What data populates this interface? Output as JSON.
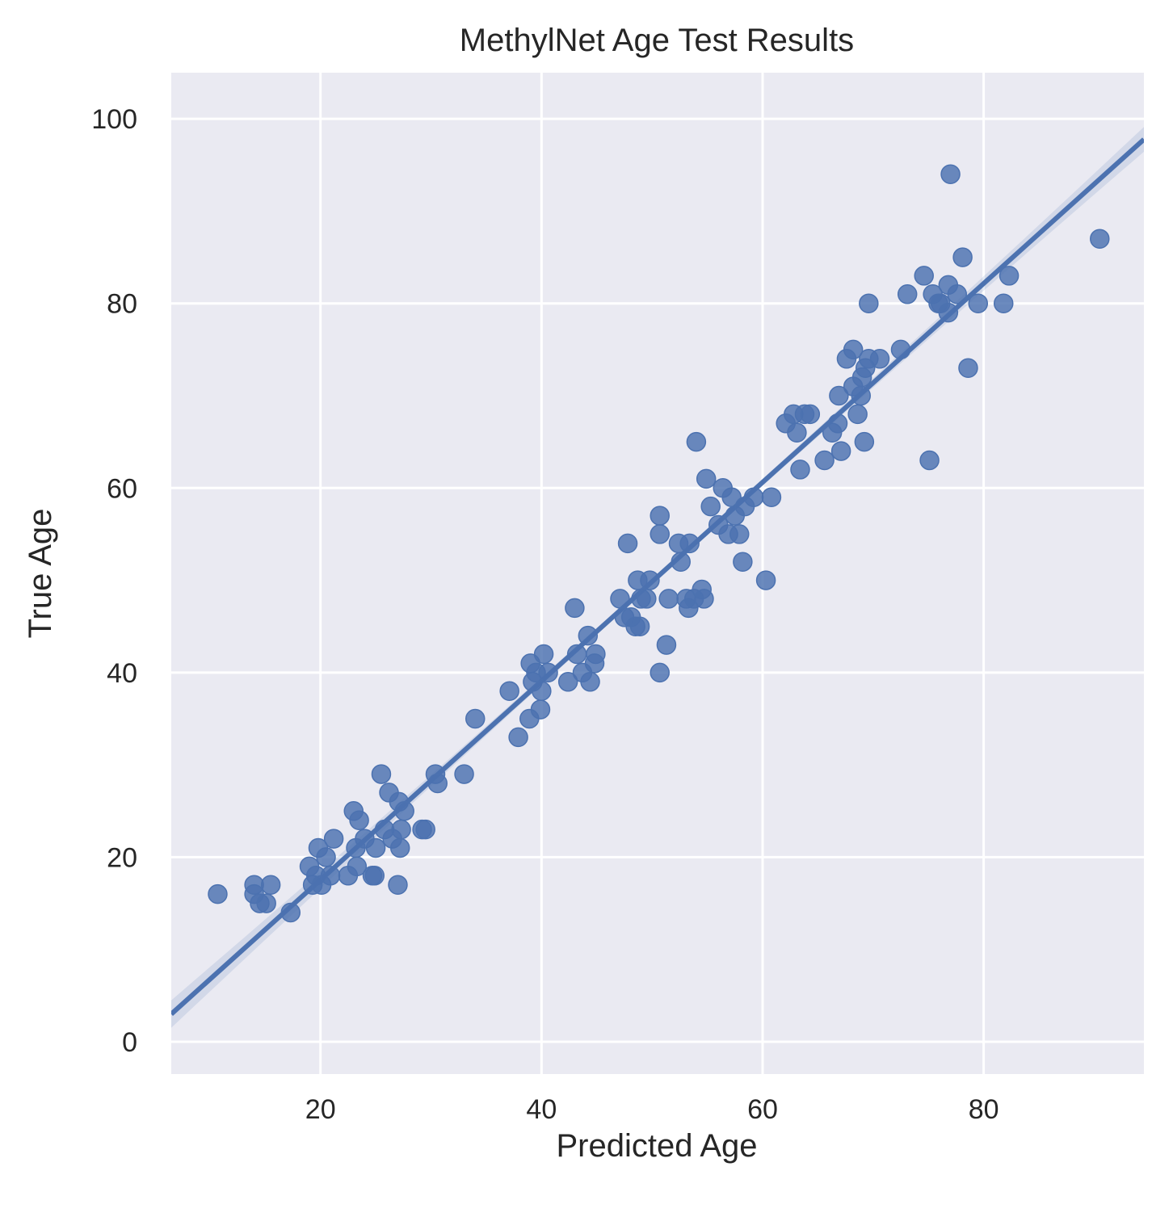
{
  "chart_data": {
    "type": "scatter",
    "title": "MethylNet Age Test Results",
    "xlabel": "Predicted Age",
    "ylabel": "True Age",
    "xlim": [
      6.5,
      94.5
    ],
    "ylim": [
      -3.5,
      105
    ],
    "xticks": [
      20,
      40,
      60,
      80
    ],
    "yticks": [
      0,
      20,
      40,
      60,
      80,
      100
    ],
    "grid": true,
    "background_color": "#eaeaf2",
    "grid_color": "#ffffff",
    "marker_color": "#4c72b0",
    "line_color": "#4c72b0",
    "regression": {
      "slope": 1.077,
      "intercept": -4.0
    },
    "points": [
      [
        10.7,
        16
      ],
      [
        14.0,
        17
      ],
      [
        14.0,
        16
      ],
      [
        14.5,
        15
      ],
      [
        15.1,
        15
      ],
      [
        15.5,
        17
      ],
      [
        17.3,
        14
      ],
      [
        19.0,
        19
      ],
      [
        19.3,
        17
      ],
      [
        19.6,
        18
      ],
      [
        19.8,
        21
      ],
      [
        20.1,
        17
      ],
      [
        20.5,
        20
      ],
      [
        20.9,
        18
      ],
      [
        21.2,
        22
      ],
      [
        22.5,
        18
      ],
      [
        23.0,
        25
      ],
      [
        23.2,
        21
      ],
      [
        23.3,
        19
      ],
      [
        23.5,
        24
      ],
      [
        24.0,
        22
      ],
      [
        24.7,
        18
      ],
      [
        24.9,
        18
      ],
      [
        25.0,
        21
      ],
      [
        25.5,
        29
      ],
      [
        25.8,
        23
      ],
      [
        26.2,
        27
      ],
      [
        26.5,
        22
      ],
      [
        27.0,
        17
      ],
      [
        27.1,
        26
      ],
      [
        27.3,
        23
      ],
      [
        27.2,
        21
      ],
      [
        27.6,
        25
      ],
      [
        29.2,
        23
      ],
      [
        29.5,
        23
      ],
      [
        30.4,
        29
      ],
      [
        30.6,
        28
      ],
      [
        33.0,
        29
      ],
      [
        34.0,
        35
      ],
      [
        37.1,
        38
      ],
      [
        37.9,
        33
      ],
      [
        38.9,
        35
      ],
      [
        39.0,
        41
      ],
      [
        39.2,
        39
      ],
      [
        39.5,
        40
      ],
      [
        39.9,
        36
      ],
      [
        40.0,
        38
      ],
      [
        40.2,
        42
      ],
      [
        40.6,
        40
      ],
      [
        42.4,
        39
      ],
      [
        43.0,
        47
      ],
      [
        43.2,
        42
      ],
      [
        43.7,
        40
      ],
      [
        44.2,
        44
      ],
      [
        44.4,
        39
      ],
      [
        44.9,
        42
      ],
      [
        44.8,
        41
      ],
      [
        47.1,
        48
      ],
      [
        47.5,
        46
      ],
      [
        47.8,
        54
      ],
      [
        48.1,
        46
      ],
      [
        48.5,
        45
      ],
      [
        48.7,
        50
      ],
      [
        48.9,
        45
      ],
      [
        49.0,
        48
      ],
      [
        49.5,
        48
      ],
      [
        49.8,
        50
      ],
      [
        50.7,
        57
      ],
      [
        50.7,
        55
      ],
      [
        50.7,
        40
      ],
      [
        51.3,
        43
      ],
      [
        51.5,
        48
      ],
      [
        52.4,
        54
      ],
      [
        52.6,
        52
      ],
      [
        53.1,
        48
      ],
      [
        53.3,
        47
      ],
      [
        53.4,
        54
      ],
      [
        53.8,
        48
      ],
      [
        54.0,
        65
      ],
      [
        54.5,
        49
      ],
      [
        54.7,
        48
      ],
      [
        54.9,
        61
      ],
      [
        55.3,
        58
      ],
      [
        56.0,
        56
      ],
      [
        56.4,
        60
      ],
      [
        56.9,
        55
      ],
      [
        57.2,
        59
      ],
      [
        57.5,
        57
      ],
      [
        57.9,
        55
      ],
      [
        58.2,
        52
      ],
      [
        58.4,
        58
      ],
      [
        59.2,
        59
      ],
      [
        60.3,
        50
      ],
      [
        60.8,
        59
      ],
      [
        62.1,
        67
      ],
      [
        62.8,
        68
      ],
      [
        63.1,
        66
      ],
      [
        63.4,
        62
      ],
      [
        63.8,
        68
      ],
      [
        64.3,
        68
      ],
      [
        65.6,
        63
      ],
      [
        66.3,
        66
      ],
      [
        66.8,
        67
      ],
      [
        66.9,
        70
      ],
      [
        67.1,
        64
      ],
      [
        67.6,
        74
      ],
      [
        68.2,
        71
      ],
      [
        68.2,
        75
      ],
      [
        68.6,
        68
      ],
      [
        68.9,
        70
      ],
      [
        69.0,
        72
      ],
      [
        69.2,
        65
      ],
      [
        69.3,
        73
      ],
      [
        69.6,
        74
      ],
      [
        69.6,
        80
      ],
      [
        70.6,
        74
      ],
      [
        72.5,
        75
      ],
      [
        73.1,
        81
      ],
      [
        74.6,
        83
      ],
      [
        75.1,
        63
      ],
      [
        75.4,
        81
      ],
      [
        75.9,
        80
      ],
      [
        76.1,
        80
      ],
      [
        76.8,
        79
      ],
      [
        76.8,
        82
      ],
      [
        77.0,
        94
      ],
      [
        77.6,
        81
      ],
      [
        78.1,
        85
      ],
      [
        78.6,
        73
      ],
      [
        79.5,
        80
      ],
      [
        81.8,
        80
      ],
      [
        82.3,
        83
      ],
      [
        90.5,
        87
      ]
    ]
  }
}
